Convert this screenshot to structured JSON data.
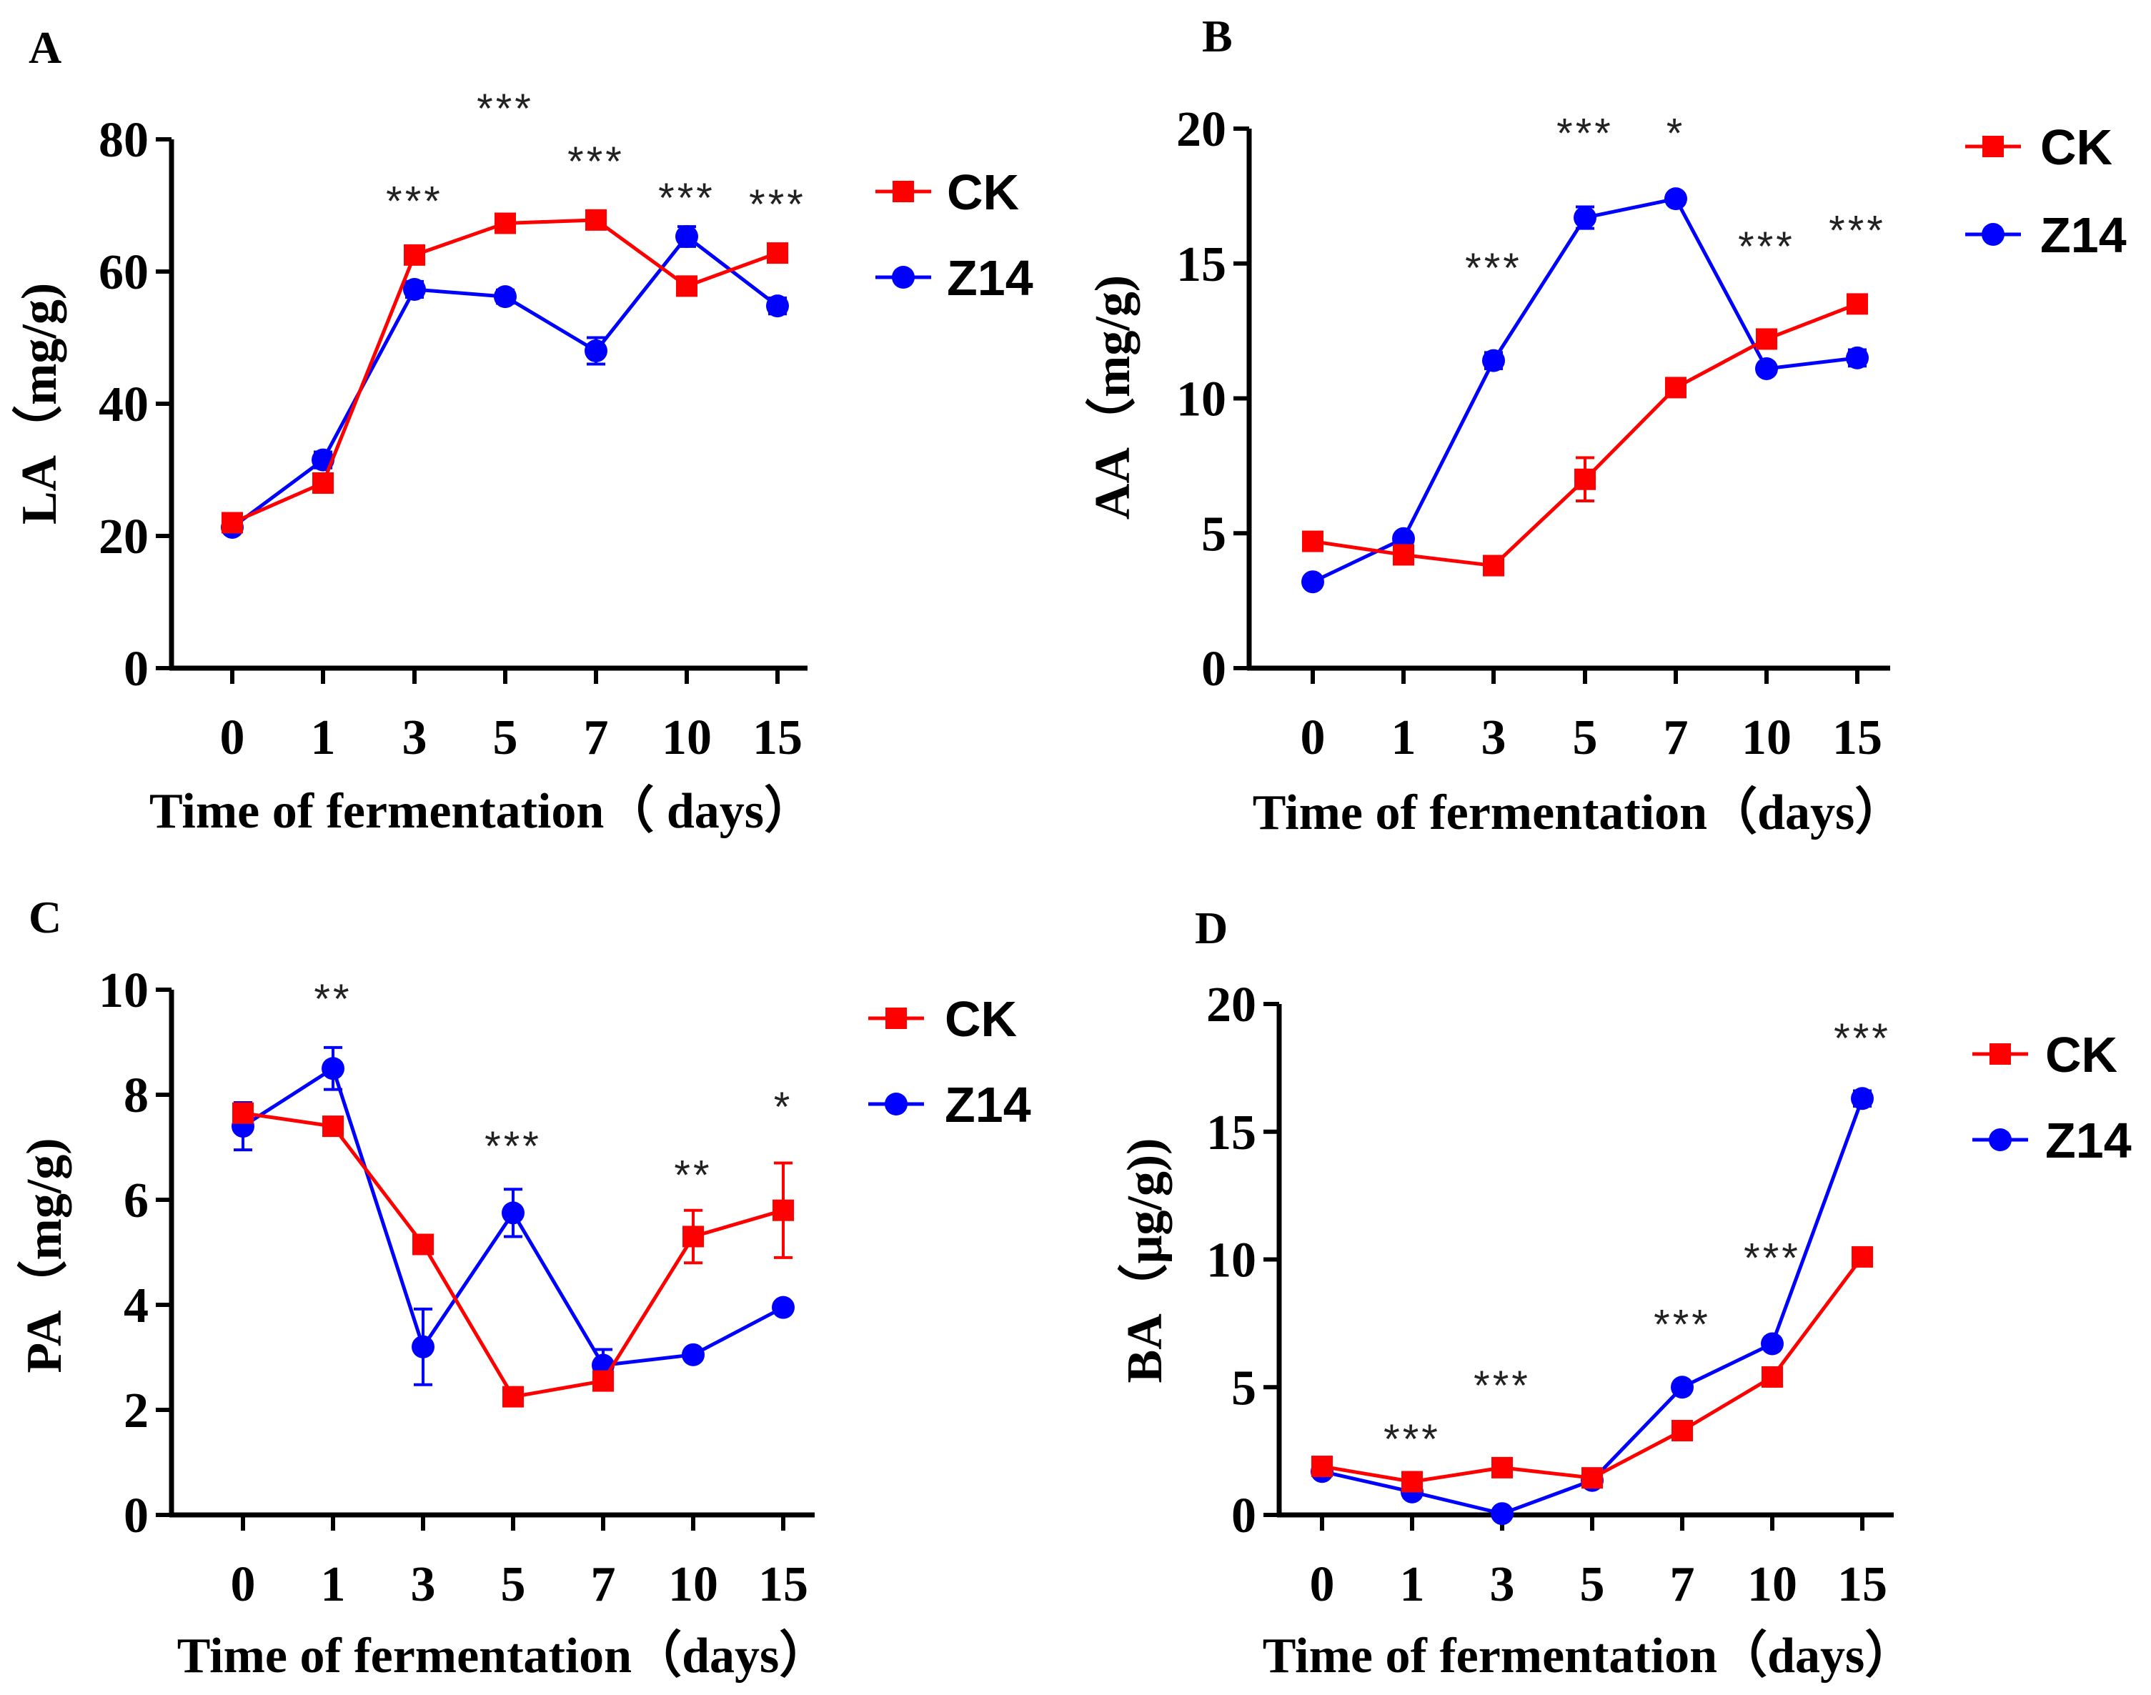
{
  "colors": {
    "CK": "#ff0000",
    "Z14": "#0000ff",
    "axis": "#000000"
  },
  "chart_data": [
    {
      "panel": "A",
      "type": "line",
      "categories": [
        "0",
        "1",
        "3",
        "5",
        "7",
        "10",
        "15"
      ],
      "xlabel": "Time of fermentation（ days）",
      "ylabel": "LA（mg/g)",
      "ylim": [
        0,
        80
      ],
      "yticks": [
        "0",
        "20",
        "40",
        "60",
        "80"
      ],
      "legend": "top-right",
      "series": [
        {
          "name": "CK",
          "marker": "square",
          "values": [
            22,
            28,
            62.5,
            67.3,
            67.8,
            57.8,
            62.8
          ],
          "errors": [
            0.8,
            1.0,
            1.0,
            1.0,
            1.0,
            1.2,
            1.0
          ]
        },
        {
          "name": "Z14",
          "marker": "circle",
          "values": [
            21.3,
            31.5,
            57.3,
            56.2,
            48,
            65.3,
            54.8
          ],
          "errors": [
            0.6,
            1.2,
            1.2,
            1.0,
            2.0,
            1.5,
            1.2
          ]
        }
      ],
      "significance": [
        {
          "label": "***",
          "x": "3",
          "y": 68.5
        },
        {
          "label": "***",
          "x": "5",
          "y": 82.5
        },
        {
          "label": "***",
          "x": "7",
          "y": 74.5
        },
        {
          "label": "***",
          "x": "10",
          "y": 69
        },
        {
          "label": "***",
          "x": "15",
          "y": 68
        }
      ]
    },
    {
      "panel": "B",
      "type": "line",
      "categories": [
        "0",
        "1",
        "3",
        "5",
        "7",
        "10",
        "15"
      ],
      "xlabel": "Time of fermentation（days）",
      "ylabel": "AA（mg/g)",
      "ylim": [
        0,
        20
      ],
      "yticks": [
        "0",
        "5",
        "10",
        "15",
        "20"
      ],
      "legend": "top-right",
      "series": [
        {
          "name": "CK",
          "marker": "square",
          "values": [
            4.7,
            4.2,
            3.8,
            7.0,
            10.4,
            12.2,
            13.5
          ],
          "errors": [
            0.2,
            0.2,
            0.2,
            0.8,
            0.3,
            0.3,
            0.3
          ]
        },
        {
          "name": "Z14",
          "marker": "circle",
          "values": [
            3.2,
            4.8,
            11.4,
            16.7,
            17.4,
            11.1,
            11.5
          ],
          "errors": [
            0.2,
            0.2,
            0.3,
            0.4,
            0.2,
            0.2,
            0.3
          ]
        }
      ],
      "significance": [
        {
          "label": "***",
          "x": "3",
          "y": 14.3
        },
        {
          "label": "***",
          "x": "5",
          "y": 19.3
        },
        {
          "label": "*",
          "x": "7",
          "y": 19.3
        },
        {
          "label": "***",
          "x": "10",
          "y": 15.1
        },
        {
          "label": "***",
          "x": "15",
          "y": 15.7
        }
      ]
    },
    {
      "panel": "C",
      "type": "line",
      "categories": [
        "0",
        "1",
        "3",
        "5",
        "7",
        "10",
        "15"
      ],
      "xlabel": "Time of fermentation（days）",
      "ylabel": "PA（mg/g)",
      "ylim": [
        0,
        10
      ],
      "yticks": [
        "0",
        "2",
        "4",
        "6",
        "8",
        "10"
      ],
      "legend": "top-right",
      "series": [
        {
          "name": "CK",
          "marker": "square",
          "values": [
            7.65,
            7.4,
            5.15,
            2.25,
            2.55,
            5.3,
            5.8
          ],
          "errors": [
            0.15,
            0.1,
            0.15,
            0.1,
            0.15,
            0.5,
            0.9
          ]
        },
        {
          "name": "Z14",
          "marker": "circle",
          "values": [
            7.4,
            8.5,
            3.2,
            5.75,
            2.85,
            3.05,
            3.95
          ],
          "errors": [
            0.45,
            0.4,
            0.72,
            0.45,
            0.3,
            0.1,
            0.1
          ]
        }
      ],
      "significance": [
        {
          "label": "**",
          "x": "1",
          "y": 9.55
        },
        {
          "label": "***",
          "x": "5",
          "y": 6.75
        },
        {
          "label": "**",
          "x": "10",
          "y": 6.2
        },
        {
          "label": "*",
          "x": "15",
          "y": 7.5
        }
      ]
    },
    {
      "panel": "D",
      "type": "line",
      "categories": [
        "0",
        "1",
        "3",
        "5",
        "7",
        "10",
        "15"
      ],
      "xlabel": "Time of fermentation（days）",
      "ylabel": "BA（μg/g))",
      "ylim": [
        0,
        20
      ],
      "yticks": [
        "0",
        "5",
        "10",
        "15",
        "20"
      ],
      "legend": "top-right",
      "series": [
        {
          "name": "CK",
          "marker": "square",
          "values": [
            1.9,
            1.3,
            1.85,
            1.45,
            3.3,
            5.4,
            10.1
          ],
          "errors": [
            0.1,
            0.1,
            0.1,
            0.1,
            0.1,
            0.1,
            0.1
          ]
        },
        {
          "name": "Z14",
          "marker": "circle",
          "values": [
            1.7,
            0.9,
            0.05,
            1.35,
            5.0,
            6.7,
            16.3
          ],
          "errors": [
            0.1,
            0.1,
            0.05,
            0.1,
            0.1,
            0.2,
            0.3
          ]
        }
      ],
      "significance": [
        {
          "label": "***",
          "x": "1",
          "y": 2.4
        },
        {
          "label": "***",
          "x": "3",
          "y": 4.5
        },
        {
          "label": "***",
          "x": "7",
          "y": 6.9
        },
        {
          "label": "***",
          "x": "10",
          "y": 9.5
        },
        {
          "label": "***",
          "x": "15",
          "y": 18.1
        }
      ]
    }
  ]
}
